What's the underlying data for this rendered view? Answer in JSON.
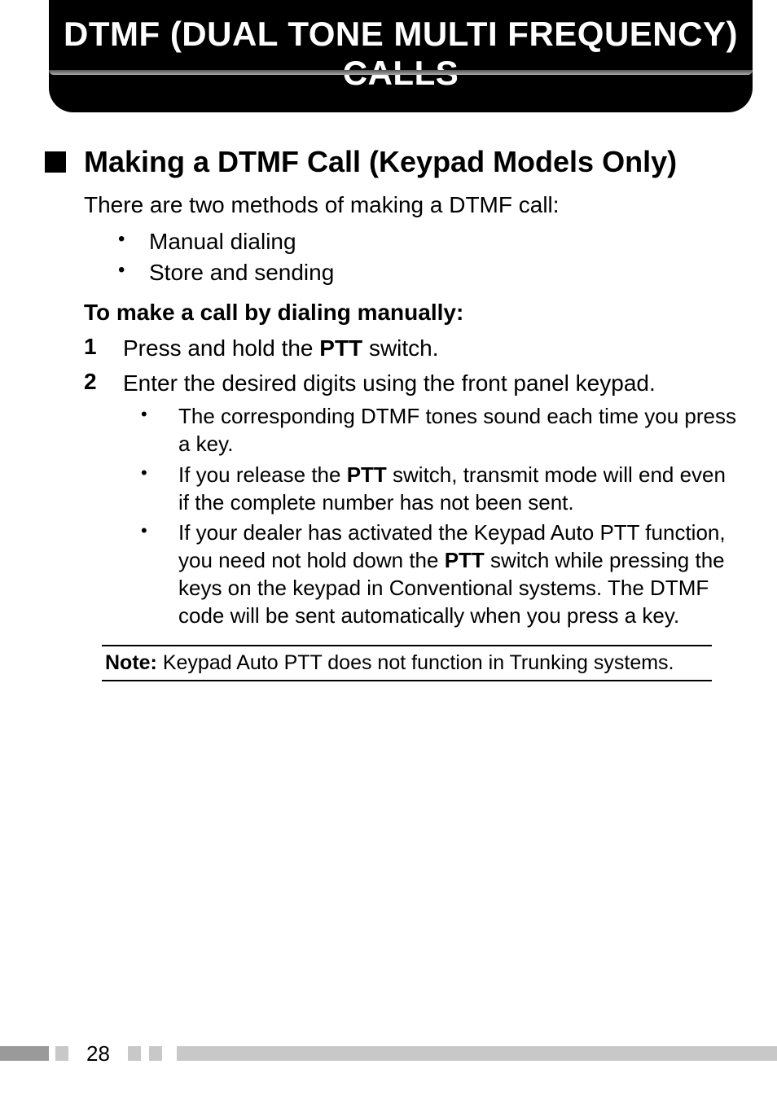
{
  "header": {
    "title": "DTMF (DUAL TONE MULTI FREQUENCY) CALLS",
    "bg_color": "#000000",
    "text_color": "#ffffff",
    "title_fontsize": 42
  },
  "section": {
    "title": "Making a DTMF Call (Keypad Models Only)",
    "intro": "There are two methods of making a DTMF call:",
    "methods": [
      "Manual dialing",
      "Store and sending"
    ],
    "sub_heading": "To make a call by dialing manually:",
    "steps": [
      {
        "num": "1",
        "text_pre": "Press and hold the ",
        "bold": "PTT",
        "text_post": " switch."
      },
      {
        "num": "2",
        "text_pre": "Enter the desired digits using the front panel keypad.",
        "bold": "",
        "text_post": "",
        "subs": [
          {
            "pre": "The corresponding DTMF tones sound each time you press a key.",
            "b1": "",
            "mid": "",
            "b2": "",
            "post": ""
          },
          {
            "pre": "If you release the ",
            "b1": "PTT",
            "mid": " switch, transmit mode will end even if the complete number has not been sent.",
            "b2": "",
            "post": ""
          },
          {
            "pre": "If your dealer has activated the Keypad Auto PTT function, you need not hold down the ",
            "b1": "PTT",
            "mid": " switch while pressing the keys on the keypad in Conventional systems.  The DTMF code will be sent automatically when you press a key.",
            "b2": "",
            "post": ""
          }
        ]
      }
    ]
  },
  "note": {
    "label": "Note:",
    "text": "  Keypad Auto PTT does not function in Trunking systems."
  },
  "footer": {
    "page": "28",
    "bar_dark": "#9a9a9a",
    "bar_light": "#c8c8c8"
  },
  "typography": {
    "body_fontsize": 28,
    "sub_bullet_fontsize": 26,
    "note_fontsize": 25,
    "heading_font": "Arial Narrow",
    "body_font": "Arial"
  }
}
